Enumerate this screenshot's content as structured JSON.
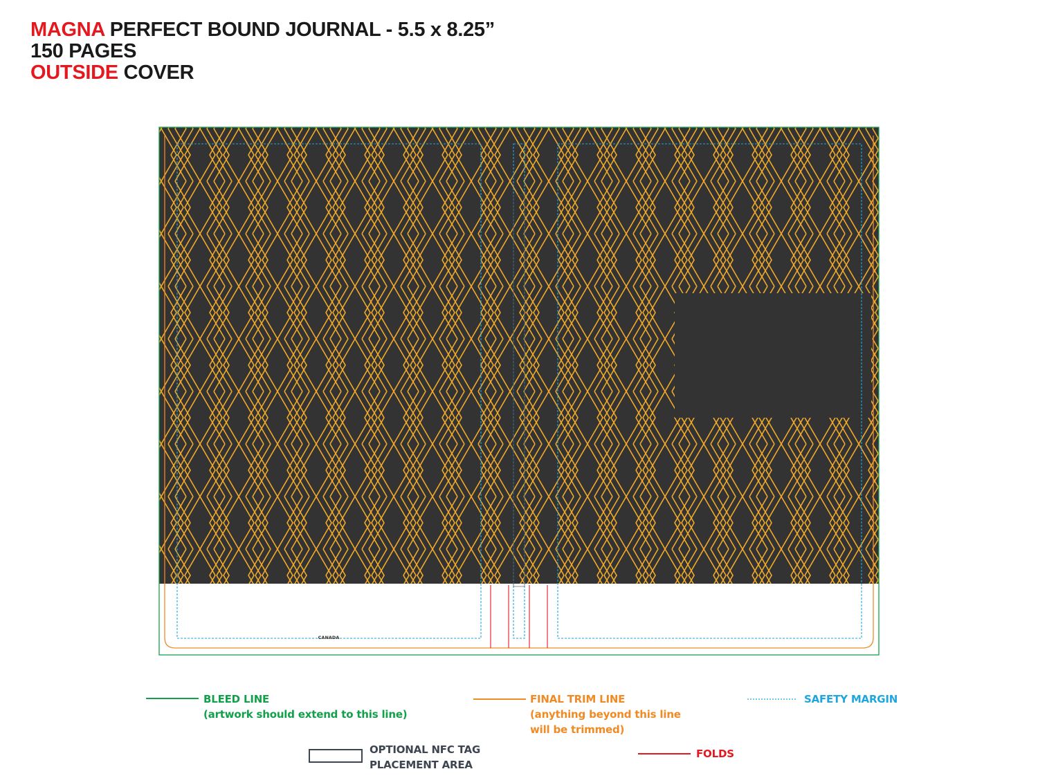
{
  "header": {
    "brand": "MAGNA",
    "title_rest": "PERFECT BOUND JOURNAL - 5.5 x 8.25”",
    "pages": "150 PAGES",
    "side": "OUTSIDE",
    "side_rest": "COVER"
  },
  "cover": {
    "imprint": "CANADA",
    "background_color": "#333333",
    "pattern_color": "#f0a92a"
  },
  "legend": {
    "bleed": {
      "title": "BLEED LINE",
      "note": "(artwork should extend to this line)",
      "color": "#12a04a"
    },
    "trim": {
      "title": "FINAL TRIM LINE",
      "note_1": "(anything beyond this line",
      "note_2": "will be trimmed)",
      "color": "#f08a24"
    },
    "safety": {
      "title": "SAFETY MARGIN",
      "color": "#1fa6df"
    },
    "nfc": {
      "title_1": "OPTIONAL NFC TAG",
      "title_2": "PLACEMENT AREA",
      "color": "#3d4650"
    },
    "folds": {
      "title": "FOLDS",
      "color": "#e3191f"
    }
  }
}
